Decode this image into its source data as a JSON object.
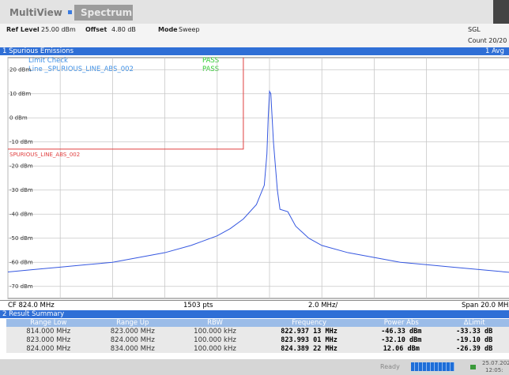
{
  "header": {
    "tabs": [
      "MultiView",
      "Spectrum"
    ]
  },
  "settings": {
    "ref_level_label": "Ref Level",
    "ref_level": "25.00 dBm",
    "offset_label": "Offset",
    "offset": "4.80 dB",
    "mode_label": "Mode",
    "mode": "Sweep",
    "sweep": "SGL",
    "count": "Count 20/20"
  },
  "chart_data": {
    "type": "line",
    "title": "1 Spurious Emissions",
    "trace_label": "1 Avg",
    "limit_check": {
      "label": "Limit Check",
      "result": "PASS",
      "line_label": "Line _SPURIOUS_LINE_ABS_002",
      "line_result": "PASS"
    },
    "limit_line": {
      "name": "SPURIOUS_LINE_ABS_002",
      "level": -13,
      "x": [
        814,
        823
      ]
    },
    "x": [
      814,
      815,
      816,
      817,
      818,
      819,
      820,
      821,
      822,
      822.5,
      823,
      823.5,
      823.8,
      823.9,
      823.95,
      824.0,
      824.05,
      824.15,
      824.3,
      824.4,
      824.7,
      825,
      825.5,
      826,
      827,
      828,
      829,
      830,
      831,
      832,
      833,
      834
    ],
    "series": [
      {
        "color": "#3557e0",
        "values": [
          -64,
          -63,
          -62,
          -61,
          -60,
          -58,
          -56,
          -53,
          -49,
          -46,
          -42,
          -36,
          -28,
          -15,
          0,
          11,
          10,
          -10,
          -30,
          -38,
          -39,
          -45,
          -50,
          -53,
          -56,
          -58,
          -60,
          -61,
          -62,
          -63,
          -64,
          -65
        ]
      }
    ],
    "xlim": [
      814,
      834
    ],
    "ylim": [
      -75,
      25
    ],
    "xticks": [
      814,
      816,
      818,
      820,
      822,
      824,
      826,
      828,
      830,
      832,
      834
    ],
    "yticks": [
      {
        "value": 20,
        "label": "20 dBm"
      },
      {
        "value": 10,
        "label": "10 dBm"
      },
      {
        "value": 0,
        "label": "0 dBm"
      },
      {
        "value": -10,
        "label": "-10 dBm"
      },
      {
        "value": -20,
        "label": "-20 dBm"
      },
      {
        "value": -30,
        "label": "-30 dBm"
      },
      {
        "value": -40,
        "label": "-40 dBm"
      },
      {
        "value": -50,
        "label": "-50 dBm"
      },
      {
        "value": -60,
        "label": "-60 dBm"
      },
      {
        "value": -70,
        "label": "-70 dBm"
      }
    ],
    "grid": true
  },
  "footer": {
    "center": "CF 824.0 MHz",
    "points": "1503 pts",
    "per_div": "2.0 MHz/",
    "span": "Span 20.0 MHz"
  },
  "result_summary": {
    "title": "2 Result Summary",
    "columns": [
      "Range Low",
      "Range Up",
      "RBW",
      "Frequency",
      "Power Abs",
      "ΔLimit"
    ],
    "rows": [
      [
        "814.000 MHz",
        "823.000 MHz",
        "100.000 kHz",
        "822.937 13 MHz",
        "-46.33 dBm",
        "-33.33 dB"
      ],
      [
        "823.000 MHz",
        "824.000 MHz",
        "100.000 kHz",
        "823.993 01 MHz",
        "-32.10 dBm",
        "-19.10 dB"
      ],
      [
        "824.000 MHz",
        "834.000 MHz",
        "100.000 kHz",
        "824.389 22 MHz",
        "12.06 dBm",
        "-26.39 dB"
      ]
    ]
  },
  "status": {
    "state": "Ready",
    "date": "25.07.202",
    "time": "12:05:"
  }
}
